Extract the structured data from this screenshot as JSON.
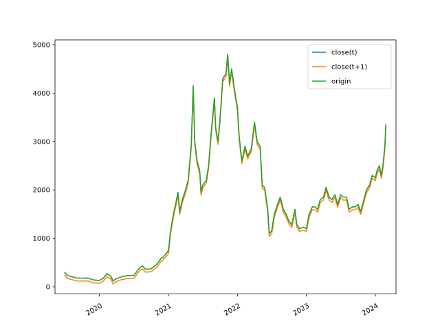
{
  "chart_data": {
    "type": "line",
    "title": "",
    "xlabel": "",
    "ylabel": "",
    "x_axis_type": "date",
    "xlim": [
      "2019-05-11",
      "2024-04-19"
    ],
    "ylim": [
      -150,
      5100
    ],
    "x_ticks": [
      {
        "date": "2020-01-01",
        "label": "2020"
      },
      {
        "date": "2021-01-01",
        "label": "2021"
      },
      {
        "date": "2022-01-01",
        "label": "2022"
      },
      {
        "date": "2023-01-01",
        "label": "2023"
      },
      {
        "date": "2024-01-01",
        "label": "2024"
      }
    ],
    "y_ticks": [
      0,
      1000,
      2000,
      3000,
      4000,
      5000
    ],
    "grid": false,
    "legend_position": "top-right",
    "series": [
      {
        "name": "close(t)",
        "color": "#1f77b4",
        "offset": 0
      },
      {
        "name": "close(t+1)",
        "color": "#ff7f0e",
        "offset": -60
      },
      {
        "name": "origin",
        "color": "#2ca02c",
        "offset": 0
      }
    ],
    "x": [
      "2019-07-01",
      "2019-07-15",
      "2019-08-01",
      "2019-09-01",
      "2019-10-01",
      "2019-11-01",
      "2019-12-01",
      "2020-01-01",
      "2020-01-20",
      "2020-02-10",
      "2020-03-01",
      "2020-03-13",
      "2020-04-01",
      "2020-05-01",
      "2020-06-01",
      "2020-07-01",
      "2020-08-01",
      "2020-08-15",
      "2020-09-01",
      "2020-10-01",
      "2020-11-01",
      "2020-11-25",
      "2020-12-01",
      "2020-12-20",
      "2021-01-01",
      "2021-01-10",
      "2021-01-20",
      "2021-02-01",
      "2021-02-10",
      "2021-02-20",
      "2021-03-01",
      "2021-03-15",
      "2021-04-01",
      "2021-04-15",
      "2021-05-01",
      "2021-05-12",
      "2021-05-20",
      "2021-06-01",
      "2021-06-15",
      "2021-06-22",
      "2021-07-01",
      "2021-07-20",
      "2021-08-01",
      "2021-08-15",
      "2021-09-01",
      "2021-09-07",
      "2021-09-20",
      "2021-10-01",
      "2021-10-15",
      "2021-11-01",
      "2021-11-10",
      "2021-11-20",
      "2021-12-01",
      "2021-12-15",
      "2022-01-01",
      "2022-01-10",
      "2022-01-24",
      "2022-02-10",
      "2022-02-24",
      "2022-03-15",
      "2022-04-01",
      "2022-04-15",
      "2022-05-01",
      "2022-05-12",
      "2022-05-25",
      "2022-06-10",
      "2022-06-18",
      "2022-07-01",
      "2022-07-15",
      "2022-08-01",
      "2022-08-15",
      "2022-09-01",
      "2022-09-15",
      "2022-10-01",
      "2022-10-15",
      "2022-11-01",
      "2022-11-10",
      "2022-11-25",
      "2022-12-15",
      "2023-01-01",
      "2023-01-15",
      "2023-02-01",
      "2023-02-15",
      "2023-03-01",
      "2023-03-15",
      "2023-04-01",
      "2023-04-15",
      "2023-05-01",
      "2023-05-15",
      "2023-06-01",
      "2023-06-15",
      "2023-07-01",
      "2023-07-15",
      "2023-08-01",
      "2023-08-15",
      "2023-09-01",
      "2023-09-15",
      "2023-10-01",
      "2023-10-15",
      "2023-11-01",
      "2023-11-15",
      "2023-12-01",
      "2023-12-15",
      "2024-01-01",
      "2024-01-10",
      "2024-01-22",
      "2024-02-01",
      "2024-02-10",
      "2024-02-20",
      "2024-02-25"
    ],
    "values": [
      300,
      230,
      215,
      180,
      175,
      180,
      140,
      130,
      170,
      270,
      220,
      120,
      170,
      210,
      230,
      230,
      390,
      430,
      360,
      370,
      470,
      600,
      600,
      690,
      750,
      1100,
      1350,
      1600,
      1750,
      1950,
      1550,
      1800,
      2000,
      2200,
      2900,
      4150,
      3000,
      2600,
      2400,
      1950,
      2100,
      2200,
      2500,
      3200,
      3900,
      3300,
      3000,
      3500,
      4300,
      4400,
      4800,
      4200,
      4500,
      4100,
      3700,
      3100,
      2600,
      2900,
      2700,
      2850,
      3400,
      3000,
      2900,
      2100,
      2050,
      1600,
      1100,
      1150,
      1500,
      1700,
      1850,
      1600,
      1500,
      1350,
      1280,
      1600,
      1300,
      1200,
      1230,
      1200,
      1500,
      1650,
      1650,
      1600,
      1800,
      1850,
      2050,
      1850,
      1800,
      1900,
      1700,
      1900,
      1850,
      1850,
      1600,
      1650,
      1650,
      1700,
      1550,
      1800,
      2000,
      2100,
      2300,
      2250,
      2400,
      2500,
      2300,
      2500,
      2900,
      3350
    ]
  }
}
